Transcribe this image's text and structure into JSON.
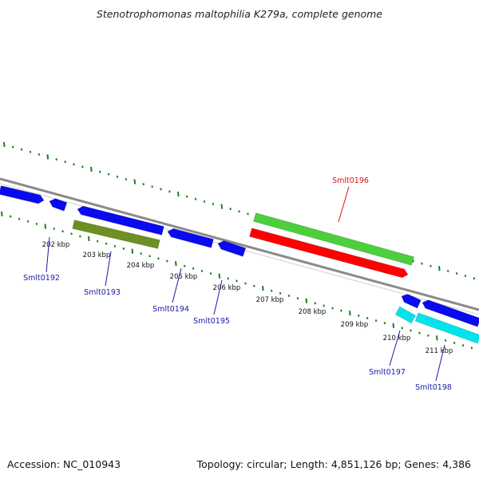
{
  "title": "Stenotrophomonas maltophilia K279a, complete genome",
  "footer": {
    "accession": "Accession: NC_010943",
    "summary": "Topology: circular; Length: 4,851,126 bp; Genes: 4,386"
  },
  "colors": {
    "backbone": "#8a8a8a",
    "tick": "#1e7d1e",
    "cds_forward": "#0a0af0",
    "cds_reverse": "#00e4ee",
    "rrna": "#4ccf3c",
    "trna": "#ff0000",
    "misc": "#6e8f22",
    "label_default": "#1a1aa8",
    "label_highlight": "#dd1111"
  },
  "kbp_labels": [
    "202 kbp",
    "203 kbp",
    "204 kbp",
    "205 kbp",
    "206 kbp",
    "207 kbp",
    "208 kbp",
    "209 kbp",
    "210 kbp",
    "211 kbp"
  ],
  "gene_labels": [
    {
      "name": "Smlt0192",
      "color": "label_default"
    },
    {
      "name": "Smlt0193",
      "color": "label_default"
    },
    {
      "name": "Smlt0194",
      "color": "label_default"
    },
    {
      "name": "Smlt0195",
      "color": "label_default"
    },
    {
      "name": "Smlt0196",
      "color": "label_highlight"
    },
    {
      "name": "Smlt0197",
      "color": "label_default"
    },
    {
      "name": "Smlt0198",
      "color": "label_default"
    }
  ]
}
